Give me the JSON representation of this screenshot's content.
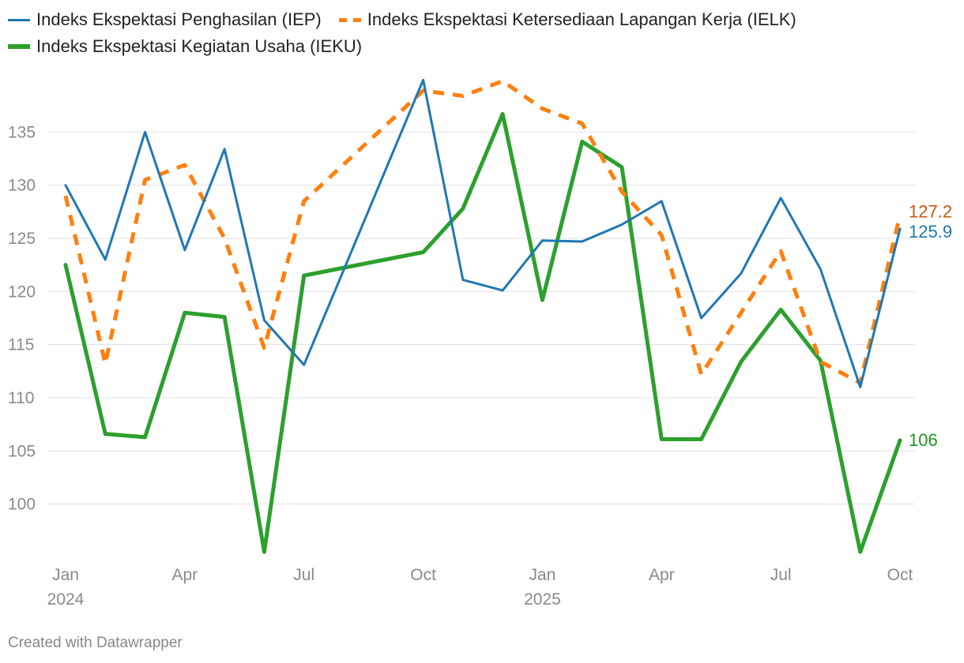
{
  "legend": {
    "iep": "Indeks Ekspektasi Penghasilan (IEP)",
    "ielk": "Indeks Ekspektasi Ketersediaan Lapangan Kerja (IELK)",
    "ieku": "Indeks Ekspektasi Kegiatan Usaha (IEKU)"
  },
  "footer": "Created with Datawrapper",
  "chart_data": {
    "type": "line",
    "title": "",
    "xlabel": "",
    "ylabel": "",
    "ylim": [
      95,
      140
    ],
    "y_ticks": [
      100,
      105,
      110,
      115,
      120,
      125,
      130,
      135
    ],
    "x": [
      "2024-01",
      "2024-02",
      "2024-03",
      "2024-04",
      "2024-05",
      "2024-06",
      "2024-07",
      "2024-08",
      "2024-09",
      "2024-10",
      "2024-11",
      "2024-12",
      "2025-01",
      "2025-02",
      "2025-03",
      "2025-04",
      "2025-05",
      "2025-06",
      "2025-07",
      "2025-08",
      "2025-09",
      "2025-10"
    ],
    "x_ticks": [
      {
        "index": 0,
        "label": "Jan",
        "sublabel": "2024"
      },
      {
        "index": 3,
        "label": "Apr",
        "sublabel": ""
      },
      {
        "index": 6,
        "label": "Jul",
        "sublabel": ""
      },
      {
        "index": 9,
        "label": "Oct",
        "sublabel": ""
      },
      {
        "index": 12,
        "label": "Jan",
        "sublabel": "2025"
      },
      {
        "index": 15,
        "label": "Apr",
        "sublabel": ""
      },
      {
        "index": 18,
        "label": "Jul",
        "sublabel": ""
      },
      {
        "index": 21,
        "label": "Oct",
        "sublabel": ""
      }
    ],
    "series": [
      {
        "key": "iep",
        "name": "Indeks Ekspektasi Penghasilan (IEP)",
        "color": "#1f77b4",
        "style": "solid",
        "values": [
          130.0,
          123.0,
          135.0,
          123.9,
          133.4,
          117.3,
          113.1,
          null,
          null,
          139.9,
          121.1,
          120.1,
          124.8,
          124.7,
          126.3,
          128.5,
          117.5,
          121.7,
          128.8,
          122.1,
          111.0,
          125.9
        ],
        "end_label": "125.9",
        "end_label_color": "#1f77b4"
      },
      {
        "key": "ielk",
        "name": "Indeks Ekspektasi Ketersediaan Lapangan Kerja (IELK)",
        "color": "#ff7f0e",
        "style": "dashed",
        "values": [
          129.0,
          113.2,
          130.5,
          131.9,
          125.0,
          114.7,
          128.5,
          null,
          null,
          138.9,
          138.4,
          139.8,
          137.2,
          135.8,
          129.4,
          125.3,
          112.2,
          118.0,
          123.8,
          113.4,
          111.4,
          127.2
        ],
        "end_label": "127.2",
        "end_label_color": "#c8560a"
      },
      {
        "key": "ieku",
        "name": "Indeks Ekspektasi Kegiatan Usaha (IEKU)",
        "color": "#2ca02c",
        "style": "solid",
        "values": [
          122.5,
          106.6,
          106.3,
          118.0,
          117.6,
          95.5,
          121.5,
          null,
          null,
          123.7,
          127.8,
          136.7,
          119.2,
          134.1,
          131.7,
          106.1,
          106.1,
          113.4,
          118.3,
          113.5,
          95.5,
          106.0
        ],
        "end_label": "106",
        "end_label_color": "#219321"
      }
    ]
  }
}
